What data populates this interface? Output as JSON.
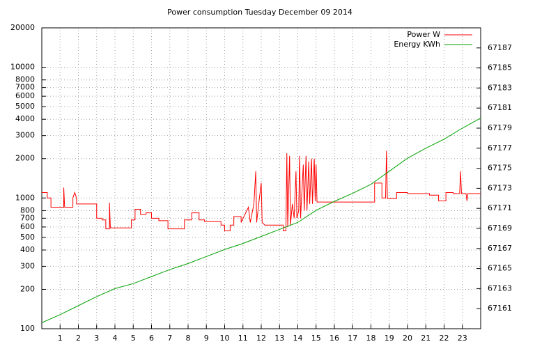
{
  "chart_data": {
    "type": "line",
    "title": "Power consumption Tuesday December 09 2014",
    "xlim": [
      0,
      24
    ],
    "xticks": [
      1,
      2,
      3,
      4,
      5,
      6,
      7,
      8,
      9,
      10,
      11,
      12,
      13,
      14,
      15,
      16,
      17,
      18,
      19,
      20,
      21,
      22,
      23
    ],
    "ylim": [
      100,
      20000
    ],
    "log_y": true,
    "yticks": [
      100,
      200,
      300,
      400,
      500,
      600,
      700,
      800,
      1000,
      2000,
      3000,
      4000,
      5000,
      6000,
      7000,
      8000,
      10000,
      20000
    ],
    "y2lim": [
      67159,
      67189
    ],
    "y2ticks": [
      67161,
      67163,
      67165,
      67167,
      67169,
      67171,
      67173,
      67175,
      67177,
      67179,
      67181,
      67183,
      67185,
      67187
    ],
    "grid": true,
    "legend": "top-right",
    "series": [
      {
        "name": "Power W",
        "color": "#ff0000",
        "x": [
          0,
          0.3,
          0.3,
          0.5,
          0.5,
          1.2,
          1.2,
          1.25,
          1.7,
          1.7,
          1.8,
          1.9,
          1.9,
          3.0,
          3.0,
          3.3,
          3.3,
          3.5,
          3.5,
          3.7,
          3.7,
          3.75,
          4.9,
          4.9,
          5.1,
          5.1,
          5.4,
          5.4,
          5.7,
          5.7,
          6.0,
          6.0,
          6.4,
          6.4,
          6.9,
          6.9,
          7.8,
          7.8,
          8.2,
          8.2,
          8.6,
          8.6,
          8.9,
          8.9,
          9.8,
          9.8,
          10.0,
          10.0,
          10.3,
          10.3,
          10.5,
          10.5,
          10.9,
          10.9,
          11.3,
          11.4,
          11.6,
          11.7,
          11.75,
          11.9,
          12.0,
          12.05,
          12.2,
          13.2,
          13.2,
          13.35,
          13.4,
          13.45,
          13.55,
          13.6,
          13.7,
          13.8,
          13.9,
          13.95,
          14.05,
          14.1,
          14.15,
          14.3,
          14.35,
          14.45,
          14.5,
          14.6,
          14.65,
          14.75,
          14.8,
          14.9,
          14.95,
          15.0,
          15.05,
          18.2,
          18.2,
          18.6,
          18.6,
          18.8,
          18.85,
          18.9,
          19.4,
          19.4,
          20.0,
          20.0,
          21.2,
          21.2,
          21.7,
          21.7,
          22.1,
          22.1,
          22.5,
          22.5,
          22.85,
          22.9,
          22.95,
          23.2,
          23.25,
          23.3,
          24
        ],
        "values": [
          1100,
          1100,
          1000,
          1000,
          850,
          850,
          1200,
          850,
          850,
          1000,
          1100,
          1000,
          900,
          900,
          700,
          700,
          680,
          680,
          580,
          580,
          920,
          590,
          590,
          680,
          680,
          820,
          820,
          750,
          750,
          770,
          770,
          700,
          700,
          670,
          670,
          580,
          580,
          680,
          680,
          770,
          770,
          680,
          680,
          660,
          660,
          620,
          620,
          560,
          560,
          620,
          620,
          720,
          720,
          650,
          850,
          650,
          900,
          1600,
          650,
          1000,
          1300,
          650,
          620,
          620,
          560,
          560,
          2200,
          600,
          2100,
          620,
          900,
          700,
          1600,
          700,
          800,
          2100,
          700,
          1800,
          800,
          2100,
          800,
          1900,
          900,
          2000,
          900,
          2000,
          950,
          1800,
          930,
          930,
          1300,
          1300,
          1000,
          1000,
          2300,
          990,
          990,
          1100,
          1100,
          1080,
          1080,
          1050,
          1050,
          950,
          950,
          1100,
          1100,
          1080,
          1080,
          1600,
          1080,
          1080,
          950,
          1080,
          1080
        ]
      },
      {
        "name": "Energy KWh",
        "color": "#00a000",
        "axis": "y2",
        "x": [
          0,
          1,
          2,
          3,
          4,
          5,
          6,
          7,
          8,
          9,
          10,
          11,
          12,
          13,
          14,
          15,
          16,
          17,
          18,
          19,
          20,
          21,
          22,
          23,
          24
        ],
        "values": [
          67159.6,
          67160.4,
          67161.3,
          67162.2,
          67163.0,
          67163.5,
          67164.2,
          67164.9,
          67165.5,
          67166.2,
          67166.9,
          67167.5,
          67168.2,
          67168.9,
          67169.6,
          67170.8,
          67171.7,
          67172.5,
          67173.4,
          67174.7,
          67176.0,
          67177.0,
          67177.9,
          67179.0,
          67180.0
        ]
      }
    ]
  }
}
